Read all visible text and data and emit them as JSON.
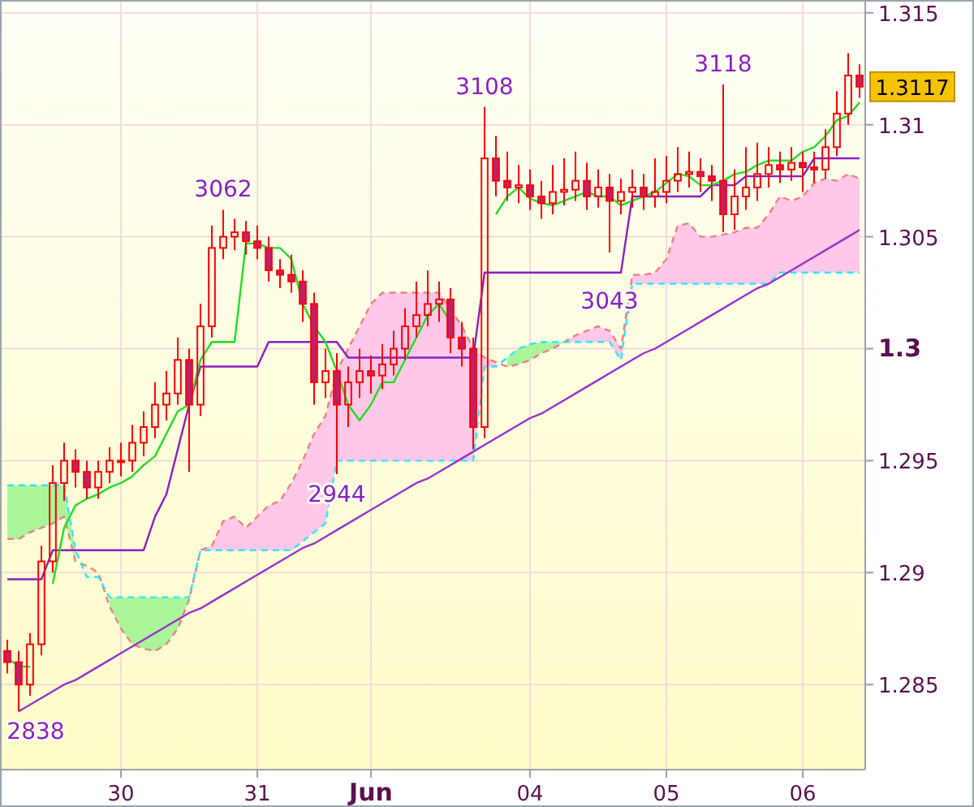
{
  "chart_data": {
    "type": "candlestick",
    "color": "#ff0000",
    "grid": true,
    "categories": [
      null,
      null,
      null,
      null,
      null,
      null,
      null,
      null,
      null,
      null,
      "30",
      null,
      null,
      null,
      null,
      null,
      null,
      null,
      null,
      null,
      null,
      null,
      "31",
      null,
      null,
      null,
      null,
      null,
      null,
      null,
      null,
      null,
      "Jun",
      null,
      null,
      null,
      null,
      null,
      null,
      null,
      null,
      null,
      null,
      null,
      null,
      null,
      "04",
      null,
      null,
      null,
      null,
      null,
      null,
      null,
      null,
      null,
      null,
      null,
      "05",
      null,
      null,
      null,
      null,
      null,
      null,
      null,
      null,
      null,
      null,
      null,
      "06",
      null,
      null,
      null,
      null,
      null
    ],
    "ylim": [
      1.2812,
      1.3155
    ],
    "yticks": [
      1.285,
      1.29,
      1.295,
      1.3,
      1.305,
      1.31,
      1.315
    ],
    "ohlc": [
      [
        1.2865,
        1.287,
        1.2855,
        1.286
      ],
      [
        1.286,
        1.2865,
        1.2838,
        1.285
      ],
      [
        1.285,
        1.2873,
        1.2845,
        1.2868
      ],
      [
        1.2868,
        1.2912,
        1.2863,
        1.2905
      ],
      [
        1.2905,
        1.2948,
        1.29,
        1.294
      ],
      [
        1.294,
        1.2958,
        1.2932,
        1.295
      ],
      [
        1.295,
        1.2955,
        1.2938,
        1.2945
      ],
      [
        1.2945,
        1.295,
        1.2933,
        1.2938
      ],
      [
        1.2938,
        1.295,
        1.2933,
        1.2945
      ],
      [
        1.2945,
        1.2956,
        1.294,
        1.295
      ],
      [
        1.295,
        1.2958,
        1.2943,
        1.295
      ],
      [
        1.295,
        1.2966,
        1.2945,
        1.2958
      ],
      [
        1.2958,
        1.2972,
        1.2952,
        1.2965
      ],
      [
        1.2965,
        1.2985,
        1.296,
        1.2975
      ],
      [
        1.2975,
        1.299,
        1.2968,
        1.298
      ],
      [
        1.298,
        1.3005,
        1.2975,
        1.2995
      ],
      [
        1.2995,
        1.3,
        1.2945,
        1.2975
      ],
      [
        1.2975,
        1.302,
        1.297,
        1.301
      ],
      [
        1.301,
        1.3055,
        1.3005,
        1.3045
      ],
      [
        1.3045,
        1.3062,
        1.304,
        1.305
      ],
      [
        1.305,
        1.3058,
        1.3044,
        1.3052
      ],
      [
        1.3052,
        1.3057,
        1.3042,
        1.3048
      ],
      [
        1.3048,
        1.3055,
        1.304,
        1.3045
      ],
      [
        1.3045,
        1.305,
        1.303,
        1.3035
      ],
      [
        1.3035,
        1.304,
        1.3027,
        1.3033
      ],
      [
        1.3033,
        1.3042,
        1.3025,
        1.303
      ],
      [
        1.303,
        1.3035,
        1.3012,
        1.302
      ],
      [
        1.302,
        1.3025,
        1.2975,
        1.2985
      ],
      [
        1.2985,
        1.3,
        1.2978,
        1.299
      ],
      [
        1.299,
        1.2998,
        1.2944,
        1.2975
      ],
      [
        1.2975,
        1.2992,
        1.2965,
        1.2985
      ],
      [
        1.2985,
        1.3,
        1.2978,
        1.299
      ],
      [
        1.299,
        1.2997,
        1.298,
        1.2988
      ],
      [
        1.2988,
        1.3002,
        1.2982,
        1.2993
      ],
      [
        1.2993,
        1.3008,
        1.2988,
        1.3
      ],
      [
        1.3,
        1.3018,
        1.2995,
        1.301
      ],
      [
        1.301,
        1.303,
        1.3005,
        1.3015
      ],
      [
        1.3015,
        1.3035,
        1.301,
        1.302
      ],
      [
        1.302,
        1.303,
        1.3012,
        1.3022
      ],
      [
        1.3022,
        1.3027,
        1.2998,
        1.3005
      ],
      [
        1.3005,
        1.3012,
        1.2992,
        1.3
      ],
      [
        1.3,
        1.3005,
        1.2955,
        1.2965
      ],
      [
        1.2965,
        1.3108,
        1.296,
        1.3085
      ],
      [
        1.3085,
        1.3095,
        1.3068,
        1.3075
      ],
      [
        1.3075,
        1.3088,
        1.3066,
        1.3072
      ],
      [
        1.3072,
        1.3082,
        1.3065,
        1.3073
      ],
      [
        1.3073,
        1.308,
        1.3062,
        1.3068
      ],
      [
        1.3068,
        1.3075,
        1.3058,
        1.3065
      ],
      [
        1.3065,
        1.3082,
        1.306,
        1.307
      ],
      [
        1.307,
        1.3085,
        1.3064,
        1.3071
      ],
      [
        1.3071,
        1.3088,
        1.3066,
        1.3075
      ],
      [
        1.3075,
        1.3083,
        1.3062,
        1.3068
      ],
      [
        1.3068,
        1.308,
        1.3063,
        1.3072
      ],
      [
        1.3072,
        1.3078,
        1.3043,
        1.3066
      ],
      [
        1.3066,
        1.3076,
        1.306,
        1.307
      ],
      [
        1.307,
        1.308,
        1.3063,
        1.3072
      ],
      [
        1.3072,
        1.3078,
        1.3062,
        1.3068
      ],
      [
        1.3068,
        1.3085,
        1.3063,
        1.307
      ],
      [
        1.307,
        1.3086,
        1.3065,
        1.3075
      ],
      [
        1.3075,
        1.309,
        1.307,
        1.3078
      ],
      [
        1.3078,
        1.3088,
        1.3072,
        1.3079
      ],
      [
        1.3079,
        1.3085,
        1.307,
        1.3077
      ],
      [
        1.3077,
        1.3082,
        1.3066,
        1.3075
      ],
      [
        1.3075,
        1.3118,
        1.3052,
        1.306
      ],
      [
        1.306,
        1.308,
        1.3053,
        1.3068
      ],
      [
        1.3068,
        1.309,
        1.3062,
        1.3072
      ],
      [
        1.3072,
        1.3092,
        1.3066,
        1.3078
      ],
      [
        1.3078,
        1.309,
        1.3072,
        1.3082
      ],
      [
        1.3082,
        1.3088,
        1.3074,
        1.308
      ],
      [
        1.308,
        1.309,
        1.3075,
        1.3083
      ],
      [
        1.3083,
        1.3088,
        1.307,
        1.3081
      ],
      [
        1.3081,
        1.3088,
        1.3074,
        1.308
      ],
      [
        1.308,
        1.3098,
        1.3076,
        1.309
      ],
      [
        1.309,
        1.3115,
        1.3086,
        1.3105
      ],
      [
        1.3105,
        1.3132,
        1.31,
        1.3122
      ],
      [
        1.3122,
        1.3127,
        1.3112,
        1.3117
      ]
    ],
    "series": [
      {
        "type": "line",
        "color": "#f08080",
        "line_style": "dashed",
        "lower": [
          null,
          null,
          null,
          null,
          null,
          null,
          null,
          null,
          null,
          null,
          null,
          null,
          null,
          null,
          null,
          null,
          null,
          1.291,
          1.291,
          1.291,
          1.291,
          1.291,
          1.291,
          1.291,
          1.291,
          1.291,
          1.2914,
          1.2918,
          1.2922,
          1.295,
          1.295,
          1.295,
          1.295,
          1.295,
          1.295,
          1.295,
          1.295,
          1.295,
          1.295,
          1.295,
          1.295,
          1.295,
          1.2992,
          1.2992,
          null,
          null,
          null,
          null,
          null,
          1.3003,
          1.3003,
          1.3003,
          1.3003,
          1.3003,
          1.2995,
          1.3029,
          1.3029,
          1.3029,
          1.3029,
          1.3029,
          1.3029,
          1.3029,
          1.3029,
          1.3029,
          1.3029,
          1.3029,
          1.3029,
          1.3029,
          1.3034,
          1.3034,
          1.3034,
          1.3034,
          1.3034,
          1.3034,
          1.3034,
          1.3034
        ],
        "upper": [
          null,
          null,
          null,
          null,
          null,
          null,
          null,
          null,
          null,
          null,
          null,
          null,
          null,
          null,
          null,
          null,
          null,
          1.291,
          1.2912,
          1.2923,
          1.2925,
          1.292,
          1.2925,
          1.293,
          1.2932,
          1.294,
          1.295,
          1.2962,
          1.297,
          1.299,
          1.3,
          1.301,
          1.302,
          1.3025,
          1.3025,
          1.3025,
          1.3025,
          1.3025,
          1.3025,
          1.3018,
          1.301,
          1.3,
          1.2996,
          1.2994,
          null,
          null,
          null,
          null,
          null,
          1.3003,
          1.3006,
          1.3008,
          1.301,
          1.3008,
          1.3,
          1.3033,
          1.3033,
          1.3034,
          1.304,
          1.3055,
          1.3056,
          1.305,
          1.305,
          1.3051,
          1.3052,
          1.3054,
          1.3054,
          1.306,
          1.3068,
          1.3066,
          1.3068,
          1.3074,
          1.3076,
          1.3075,
          1.3078,
          1.3076
        ],
        "values": [
          1.2915,
          1.2915,
          1.2918,
          1.292,
          1.2922,
          1.2925,
          1.2905,
          1.2903,
          1.29,
          1.2885,
          1.2875,
          1.2868,
          1.2866,
          1.2865,
          1.2868,
          1.2875,
          1.2888,
          1.291,
          1.2912,
          1.2923,
          1.2925,
          1.292,
          1.2925,
          1.293,
          1.2932,
          1.294,
          1.295,
          1.2962,
          1.297,
          1.299,
          1.3,
          1.301,
          1.302,
          1.3025,
          1.3025,
          1.3025,
          1.3025,
          1.3025,
          1.3025,
          1.3018,
          1.301,
          1.3,
          1.2996,
          1.2994,
          1.2992,
          1.2993,
          1.2995,
          1.2998,
          1.3,
          1.3003,
          1.3006,
          1.3008,
          1.301,
          1.3008,
          1.3,
          1.3033,
          1.3033,
          1.3034,
          1.304,
          1.3055,
          1.3056,
          1.305,
          1.305,
          1.3051,
          1.3052,
          1.3054,
          1.3054,
          1.306,
          1.3068,
          1.3066,
          1.3068,
          1.3074,
          1.3076,
          1.3075,
          1.3078,
          1.3076
        ]
      },
      {
        "type": "line",
        "color": "#33e5ff",
        "line_style": "dashed",
        "lower": [
          1.2915,
          1.2915,
          1.2918,
          1.292,
          1.2922,
          1.2925,
          1.2905,
          null,
          null,
          1.2885,
          1.2875,
          1.2868,
          1.2866,
          1.2865,
          1.2868,
          1.2875,
          1.2888,
          1.291,
          null,
          null,
          null,
          null,
          null,
          null,
          null,
          null,
          null,
          null,
          null,
          null,
          null,
          null,
          null,
          null,
          null,
          null,
          null,
          null,
          null,
          null,
          null,
          null,
          null,
          null,
          1.2992,
          1.2993,
          1.2995,
          1.2998,
          1.3,
          1.3003,
          null,
          null,
          null,
          null,
          null,
          null,
          null,
          null,
          null,
          null,
          null,
          null,
          null,
          null,
          null,
          null,
          null,
          null,
          null,
          null,
          null,
          null,
          null,
          null,
          null,
          null
        ],
        "upper": [
          1.2939,
          1.2939,
          1.2939,
          1.2939,
          1.2939,
          1.2939,
          1.291,
          null,
          null,
          1.2889,
          1.2889,
          1.2889,
          1.2889,
          1.2889,
          1.2889,
          1.2889,
          1.2889,
          1.291,
          null,
          null,
          null,
          null,
          null,
          null,
          null,
          null,
          null,
          null,
          null,
          null,
          null,
          null,
          null,
          null,
          null,
          null,
          null,
          null,
          null,
          null,
          null,
          null,
          null,
          null,
          1.2996,
          1.3,
          1.3002,
          1.3003,
          1.3003,
          1.3003,
          null,
          null,
          null,
          null,
          null,
          null,
          null,
          null,
          null,
          null,
          null,
          null,
          null,
          null,
          null,
          null,
          null,
          null,
          null,
          null,
          null,
          null,
          null,
          null,
          null,
          null
        ],
        "values": [
          1.2939,
          1.2939,
          1.2939,
          1.2939,
          1.2939,
          1.2939,
          1.291,
          1.2898,
          1.2898,
          1.2889,
          1.2889,
          1.2889,
          1.2889,
          1.2889,
          1.2889,
          1.2889,
          1.2889,
          1.291,
          1.291,
          1.291,
          1.291,
          1.291,
          1.291,
          1.291,
          1.291,
          1.291,
          1.2914,
          1.2918,
          1.2922,
          1.295,
          1.295,
          1.295,
          1.295,
          1.295,
          1.295,
          1.295,
          1.295,
          1.295,
          1.295,
          1.295,
          1.295,
          1.295,
          1.2992,
          1.2992,
          1.2996,
          1.3,
          1.3002,
          1.3003,
          1.3003,
          1.3003,
          1.3003,
          1.3003,
          1.3003,
          1.3003,
          1.2995,
          1.3029,
          1.3029,
          1.3029,
          1.3029,
          1.3029,
          1.3029,
          1.3029,
          1.3029,
          1.3029,
          1.3029,
          1.3029,
          1.3029,
          1.3029,
          1.3034,
          1.3034,
          1.3034,
          1.3034,
          1.3034,
          1.3034,
          1.3034,
          1.3034
        ]
      },
      {
        "type": "line",
        "color": "#8a1fc8",
        "values": [
          1.2897,
          1.2897,
          1.2897,
          1.2897,
          1.291,
          1.291,
          1.291,
          1.291,
          1.291,
          1.291,
          1.291,
          1.291,
          1.291,
          1.2925,
          1.2935,
          1.2955,
          1.2975,
          1.2992,
          1.2992,
          1.2992,
          1.2992,
          1.2992,
          1.2992,
          1.3003,
          1.3003,
          1.3003,
          1.3003,
          1.3003,
          1.3003,
          1.3003,
          1.2996,
          1.2996,
          1.2996,
          1.2996,
          1.2996,
          1.2996,
          1.2996,
          1.2996,
          1.2996,
          1.2996,
          1.2996,
          1.2996,
          1.3034,
          1.3034,
          1.3034,
          1.3034,
          1.3034,
          1.3034,
          1.3034,
          1.3034,
          1.3034,
          1.3034,
          1.3034,
          1.3034,
          1.3034,
          1.3068,
          1.3068,
          1.3068,
          1.3068,
          1.3068,
          1.3068,
          1.3068,
          1.3073,
          1.3073,
          1.3073,
          1.3077,
          1.3077,
          1.3077,
          1.3077,
          1.3077,
          1.3077,
          1.3085,
          1.3085,
          1.3085,
          1.3085,
          1.3085
        ]
      },
      {
        "type": "line",
        "color": "#22dd22",
        "values": [
          1.2862,
          1.2858,
          1.2858,
          null,
          1.2895,
          1.292,
          1.293,
          1.2933,
          1.2935,
          1.2938,
          1.294,
          1.2943,
          1.2948,
          1.2952,
          1.2962,
          1.2972,
          1.2975,
          1.2995,
          1.3003,
          1.3003,
          1.3003,
          1.3047,
          1.3047,
          1.3045,
          1.3045,
          1.304,
          1.302,
          1.301,
          1.3003,
          1.299,
          1.2975,
          1.2968,
          1.2975,
          1.2985,
          1.2985,
          1.2995,
          1.3005,
          1.3015,
          1.302,
          1.3012,
          null,
          null,
          null,
          1.306,
          1.3068,
          1.3072,
          1.3067,
          1.3065,
          1.3064,
          1.3066,
          1.3068,
          1.307,
          1.3068,
          1.3068,
          1.3064,
          1.3066,
          1.3068,
          1.307,
          1.3074,
          1.3078,
          1.3077,
          1.3073,
          1.3073,
          1.3075,
          1.3078,
          1.3079,
          1.3082,
          1.3084,
          1.3084,
          1.3084,
          1.3088,
          1.309,
          1.3095,
          1.3102,
          1.3104,
          1.311
        ]
      },
      {
        "type": "line",
        "color": "#9933cc",
        "values": [
          null,
          1.2838,
          1.2841,
          1.2844,
          1.2847,
          1.285,
          1.2852,
          1.2855,
          1.2858,
          1.2861,
          1.2864,
          1.2867,
          1.287,
          1.2873,
          1.2876,
          1.2879,
          1.2882,
          1.2884,
          1.2887,
          1.289,
          1.2893,
          1.2896,
          1.2899,
          1.2902,
          1.2905,
          1.2908,
          1.2911,
          1.2913,
          1.2916,
          1.2919,
          1.2922,
          1.2925,
          1.2928,
          1.2931,
          1.2934,
          1.2937,
          1.294,
          1.2942,
          1.2945,
          1.2948,
          1.2951,
          1.2954,
          1.2957,
          1.296,
          1.2963,
          1.2966,
          1.2969,
          1.2971,
          1.2974,
          1.2977,
          1.298,
          1.2983,
          1.2986,
          1.2989,
          1.2992,
          1.2995,
          1.2998,
          1.3,
          1.3003,
          1.3006,
          1.3009,
          1.3012,
          1.3015,
          1.3018,
          1.3021,
          1.3024,
          1.3027,
          1.3029,
          1.3032,
          1.3035,
          1.3038,
          1.3041,
          1.3044,
          1.3047,
          1.305,
          1.3053
        ]
      }
    ],
    "annotations": [
      {
        "text": "2838",
        "y": 1.2838
      },
      {
        "text": "3062",
        "y": 1.3062
      },
      {
        "text": "2944",
        "y": 1.2944
      },
      {
        "text": "3108",
        "y": 1.3108
      },
      {
        "text": "3043",
        "y": 1.3043
      },
      {
        "text": "3118",
        "y": 1.3118
      },
      "1.3117"
    ]
  }
}
